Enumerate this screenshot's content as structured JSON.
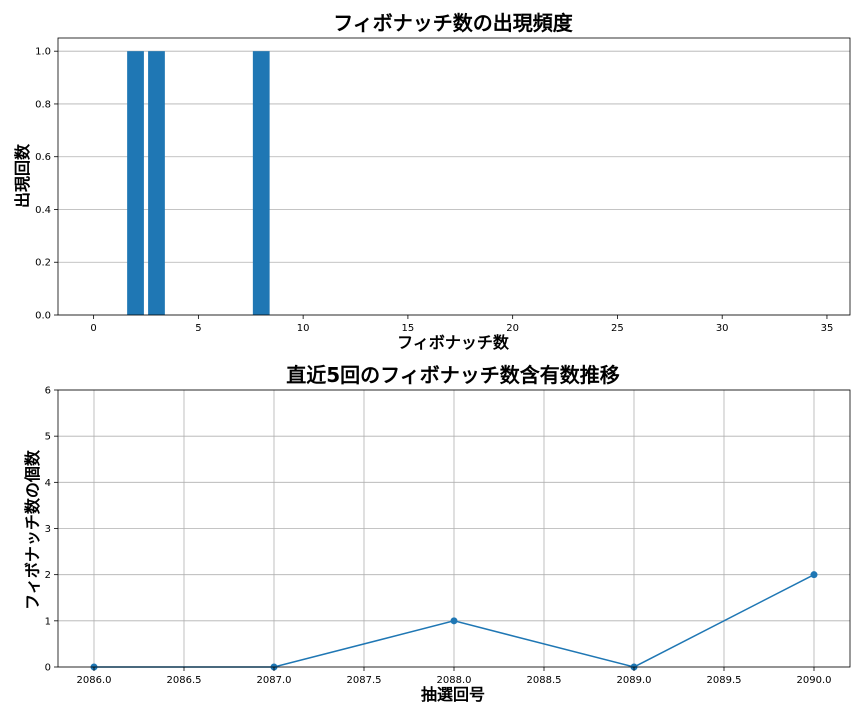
{
  "chart_data": [
    {
      "type": "bar",
      "title": "フィボナッチ数の出現頻度",
      "xlabel": "フィボナッチ数",
      "ylabel": "出現回数",
      "x": [
        2,
        3,
        8
      ],
      "values": [
        1,
        1,
        1
      ],
      "xlim": [
        -1.7,
        36.1
      ],
      "ylim": [
        0,
        1.05
      ],
      "xticks": [
        0,
        5,
        10,
        15,
        20,
        25,
        30,
        35
      ],
      "xtick_labels": [
        "0",
        "5",
        "10",
        "15",
        "20",
        "25",
        "30",
        "35"
      ],
      "yticks": [
        0,
        0.2,
        0.4,
        0.6,
        0.8,
        1.0
      ],
      "ytick_labels": [
        "0.0",
        "0.2",
        "0.4",
        "0.6",
        "0.8",
        "1.0"
      ],
      "bar_width": 0.8,
      "grid": "y",
      "color": "#1f77b4"
    },
    {
      "type": "line",
      "title": "直近5回のフィボナッチ数含有数推移",
      "xlabel": "抽選回号",
      "ylabel": "フィボナッチ数の個数",
      "x": [
        2086,
        2087,
        2088,
        2089,
        2090
      ],
      "y": [
        0,
        0,
        1,
        0,
        2
      ],
      "xlim": [
        2085.8,
        2090.2
      ],
      "ylim": [
        0,
        6
      ],
      "xticks": [
        2086,
        2086.5,
        2087,
        2087.5,
        2088,
        2088.5,
        2089,
        2089.5,
        2090
      ],
      "xtick_labels": [
        "2086.0",
        "2086.5",
        "2087.0",
        "2087.5",
        "2088.0",
        "2088.5",
        "2089.0",
        "2089.5",
        "2090.0"
      ],
      "yticks": [
        0,
        1,
        2,
        3,
        4,
        5,
        6
      ],
      "ytick_labels": [
        "0",
        "1",
        "2",
        "3",
        "4",
        "5",
        "6"
      ],
      "grid": "both",
      "color": "#1f77b4"
    }
  ]
}
